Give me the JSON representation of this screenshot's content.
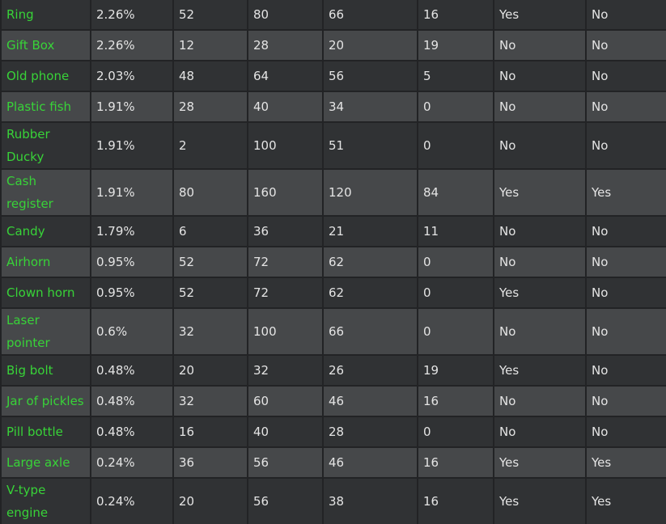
{
  "table": {
    "rows": [
      [
        "Ring",
        "2.26%",
        "52",
        "80",
        "66",
        "16",
        "Yes",
        "No"
      ],
      [
        "Gift Box",
        "2.26%",
        "12",
        "28",
        "20",
        "19",
        "No",
        "No"
      ],
      [
        "Old phone",
        "2.03%",
        "48",
        "64",
        "56",
        "5",
        "No",
        "No"
      ],
      [
        "Plastic fish",
        "1.91%",
        "28",
        "40",
        "34",
        "0",
        "No",
        "No"
      ],
      [
        "Rubber Ducky",
        "1.91%",
        "2",
        "100",
        "51",
        "0",
        "No",
        "No"
      ],
      [
        "Cash register",
        "1.91%",
        "80",
        "160",
        "120",
        "84",
        "Yes",
        "Yes"
      ],
      [
        "Candy",
        "1.79%",
        "6",
        "36",
        "21",
        "11",
        "No",
        "No"
      ],
      [
        "Airhorn",
        "0.95%",
        "52",
        "72",
        "62",
        "0",
        "No",
        "No"
      ],
      [
        "Clown horn",
        "0.95%",
        "52",
        "72",
        "62",
        "0",
        "Yes",
        "No"
      ],
      [
        "Laser pointer",
        "0.6%",
        "32",
        "100",
        "66",
        "0",
        "No",
        "No"
      ],
      [
        "Big bolt",
        "0.48%",
        "20",
        "32",
        "26",
        "19",
        "Yes",
        "No"
      ],
      [
        "Jar of pickles",
        "0.48%",
        "32",
        "60",
        "46",
        "16",
        "No",
        "No"
      ],
      [
        "Pill bottle",
        "0.48%",
        "16",
        "40",
        "28",
        "0",
        "No",
        "No"
      ],
      [
        "Large axle",
        "0.24%",
        "36",
        "56",
        "46",
        "16",
        "Yes",
        "Yes"
      ],
      [
        "V-type engine",
        "0.24%",
        "20",
        "56",
        "38",
        "16",
        "Yes",
        "Yes"
      ]
    ]
  },
  "colors": {
    "item_name": "#38d338",
    "row_dark": "#303234",
    "row_light": "#46484a",
    "border": "#222325"
  }
}
